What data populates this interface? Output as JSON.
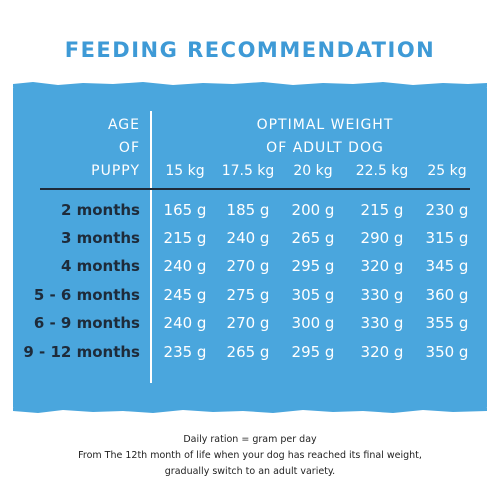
{
  "title": "FEEDING RECOMMENDATION",
  "header": {
    "age_lines": [
      "AGE",
      "OF",
      "PUPPY"
    ],
    "optimal_lines": [
      "OPTIMAL WEIGHT",
      "OF ADULT DOG"
    ],
    "weights": [
      "15 kg",
      "17.5 kg",
      "20 kg",
      "22.5 kg",
      "25 kg"
    ]
  },
  "rows": [
    {
      "age": "2 months",
      "values": [
        "165 g",
        "185 g",
        "200 g",
        "215 g",
        "230 g"
      ]
    },
    {
      "age": "3 months",
      "values": [
        "215 g",
        "240 g",
        "265 g",
        "290 g",
        "315 g"
      ]
    },
    {
      "age": "4 months",
      "values": [
        "240 g",
        "270 g",
        "295 g",
        "320 g",
        "345 g"
      ]
    },
    {
      "age": "5 - 6 months",
      "values": [
        "245 g",
        "275 g",
        "305 g",
        "330 g",
        "360 g"
      ]
    },
    {
      "age": "6 - 9 months",
      "values": [
        "240 g",
        "270 g",
        "300 g",
        "330 g",
        "355 g"
      ]
    },
    {
      "age": "9 - 12 months",
      "values": [
        "235 g",
        "265 g",
        "295 g",
        "320 g",
        "350 g"
      ]
    }
  ],
  "footer": [
    "Daily ration = gram per day",
    "From The 12th month of life when your dog has reached its final weight,",
    "gradually switch to an adult variety."
  ],
  "colors": {
    "panel": "#4aa6dd",
    "title": "#3e9ad6",
    "age_text": "#1e2b3a"
  }
}
